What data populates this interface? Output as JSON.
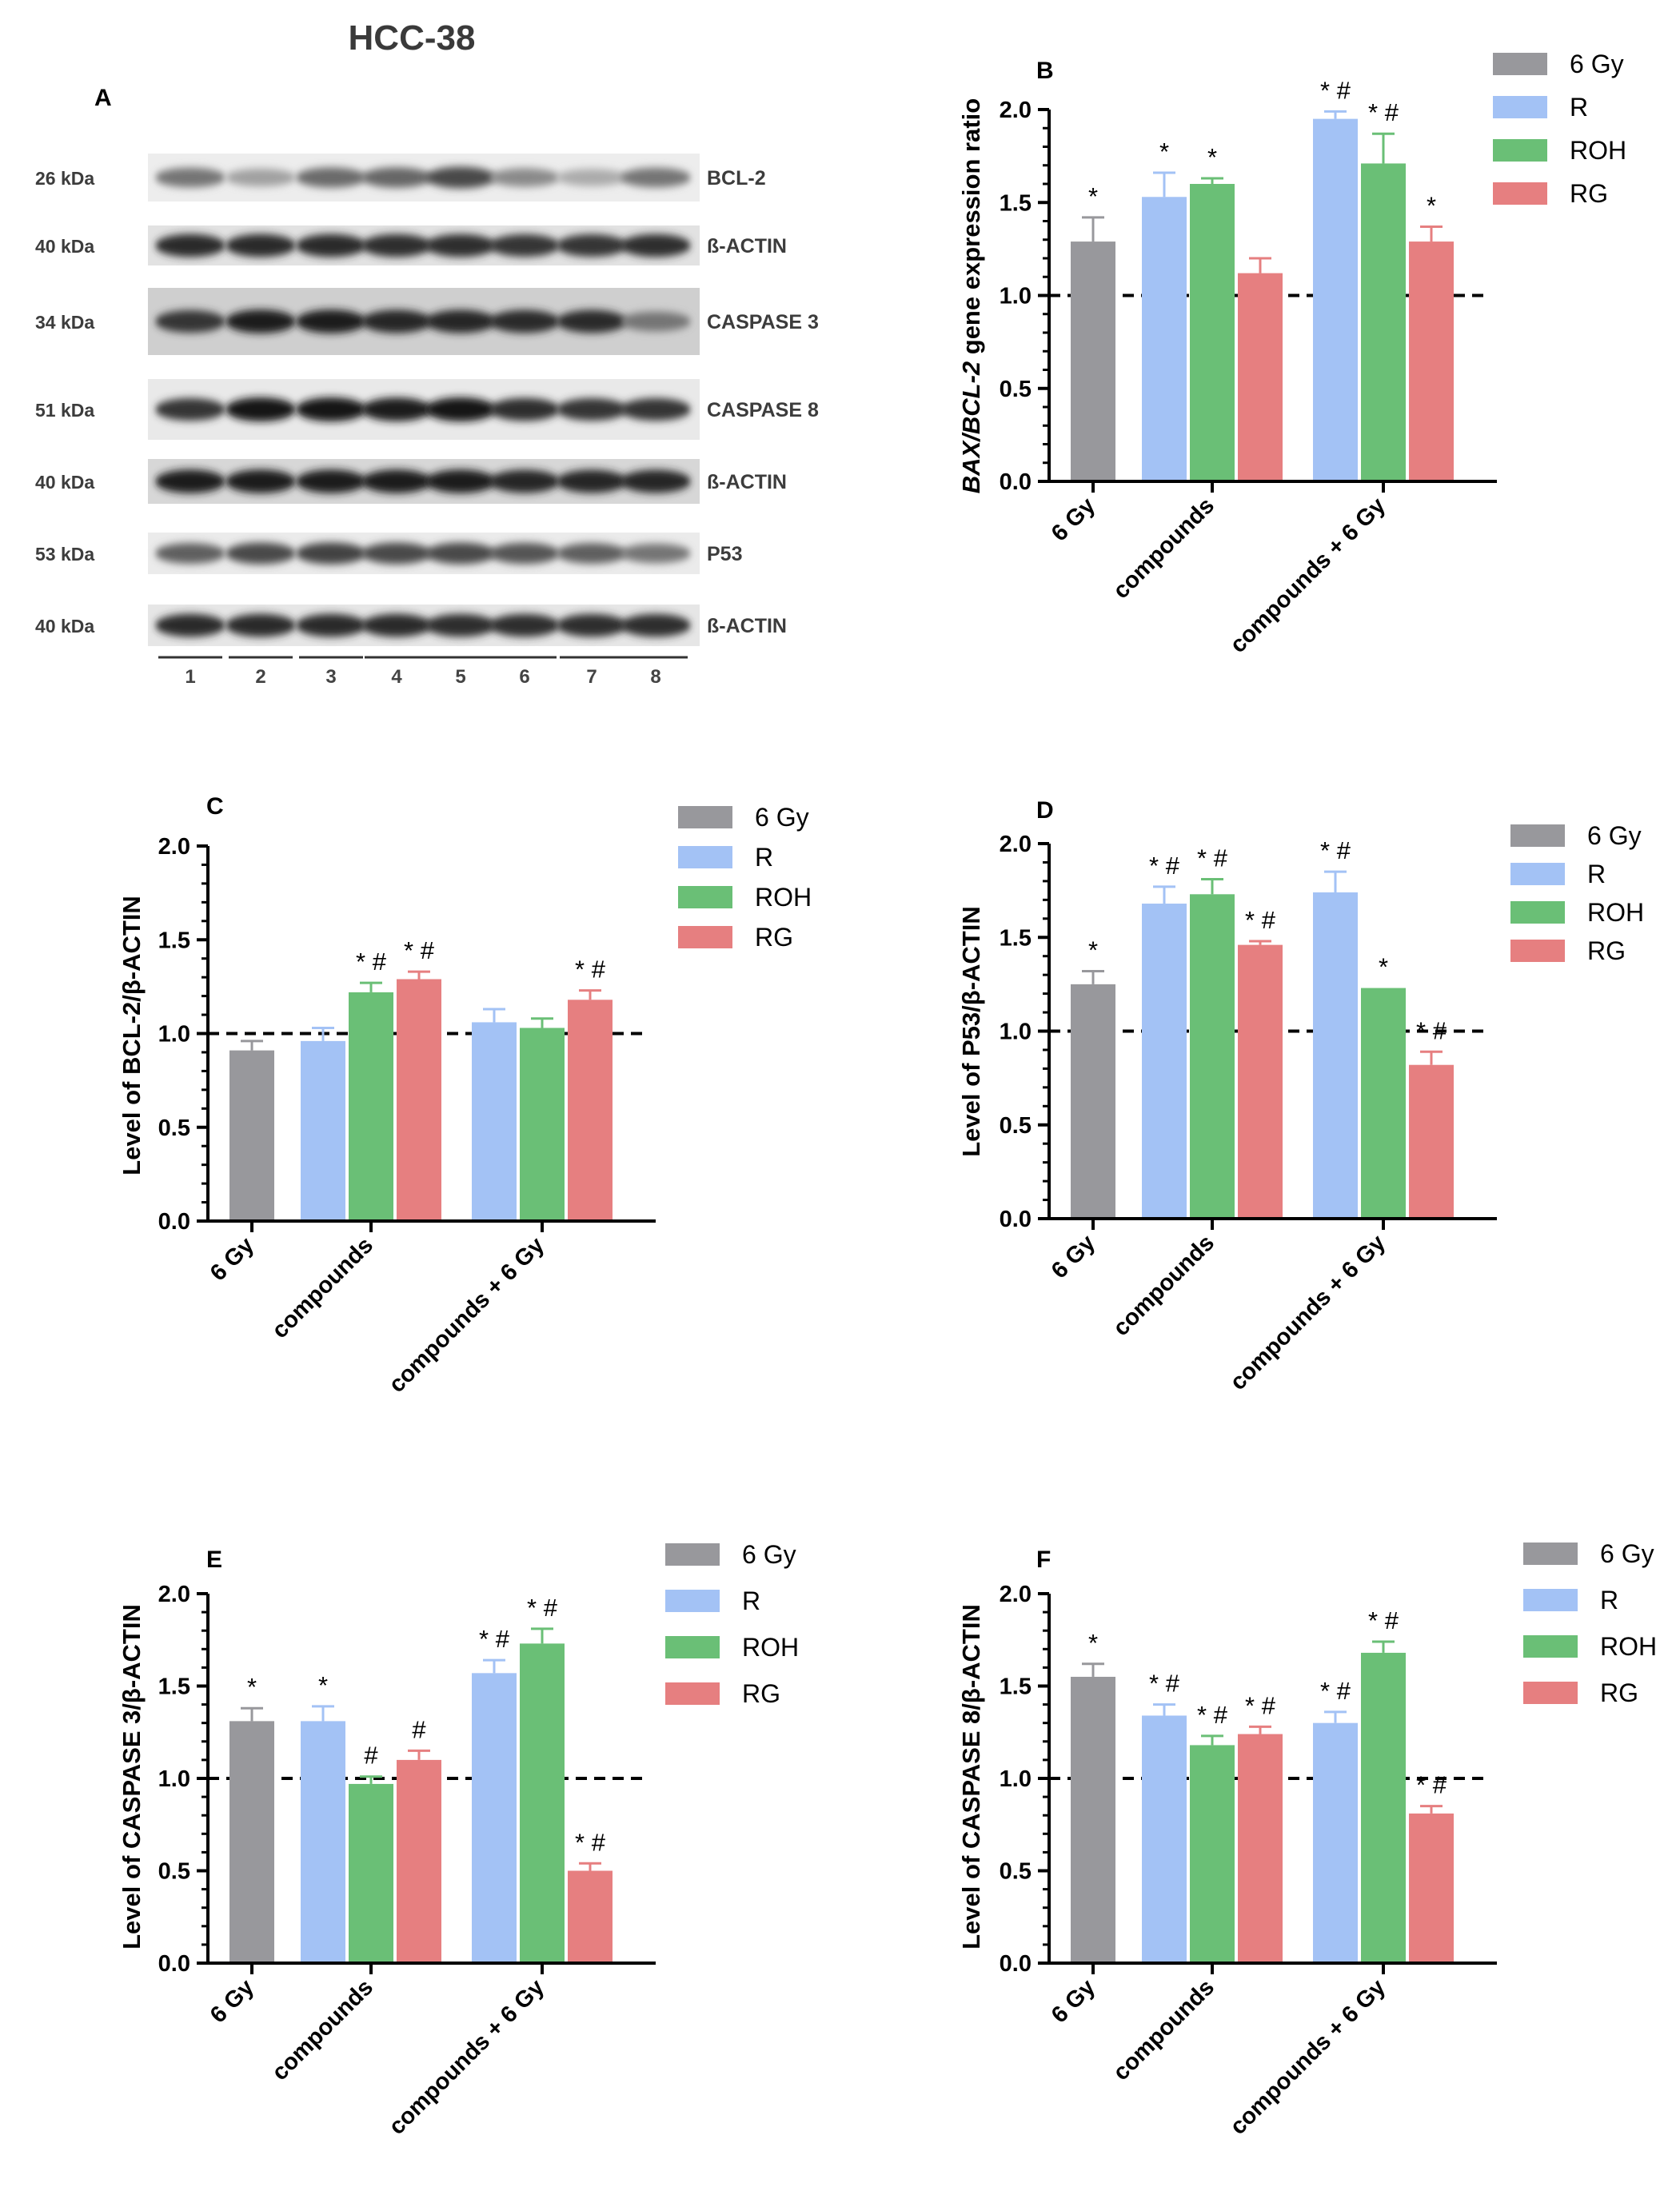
{
  "blot": {
    "title": "HCC-38",
    "panel": "A",
    "bands": [
      {
        "kda": "26 kDa",
        "label": "BCL-2",
        "intensity": [
          0.55,
          0.35,
          0.6,
          0.62,
          0.75,
          0.45,
          0.3,
          0.55
        ]
      },
      {
        "kda": "40 kDa",
        "label": "ß-ACTIN",
        "intensity": [
          0.9,
          0.9,
          0.9,
          0.88,
          0.88,
          0.85,
          0.85,
          0.88
        ]
      },
      {
        "kda": "34 kDa",
        "label": "CASPASE 3",
        "intensity": [
          0.85,
          0.95,
          0.95,
          0.92,
          0.92,
          0.9,
          0.9,
          0.55
        ]
      },
      {
        "kda": "51 kDa",
        "label": "CASPASE 8",
        "intensity": [
          0.85,
          1.0,
          1.0,
          0.95,
          1.0,
          0.88,
          0.85,
          0.85
        ]
      },
      {
        "kda": "40 kDa",
        "label": "ß-ACTIN",
        "intensity": [
          0.95,
          0.95,
          0.95,
          0.95,
          0.95,
          0.92,
          0.92,
          0.92
        ]
      },
      {
        "kda": "53 kDa",
        "label": "P53",
        "intensity": [
          0.65,
          0.75,
          0.78,
          0.75,
          0.75,
          0.7,
          0.65,
          0.55
        ]
      },
      {
        "kda": "40 kDa",
        "label": "ß-ACTIN",
        "intensity": [
          0.9,
          0.9,
          0.9,
          0.9,
          0.88,
          0.88,
          0.88,
          0.88
        ]
      }
    ],
    "lanes": [
      "1",
      "2",
      "3",
      "4",
      "5",
      "6",
      "7",
      "8"
    ]
  },
  "colors": {
    "6 Gy": "#98989c",
    "R": "#a3c2f5",
    "ROH": "#6abf76",
    "RG": "#e67f80"
  },
  "chart_data": [
    {
      "panel": "B",
      "type": "bar",
      "ylabel_italic": "BAX/BCL-2",
      "ylabel_rest": " gene expression ratio",
      "ylim": [
        0,
        2.0
      ],
      "yticks": [
        "0.0",
        "0.5",
        "1.0",
        "1.5",
        "2.0"
      ],
      "reference_line": 1.0,
      "legend": [
        "6 Gy",
        "R",
        "ROH",
        "RG"
      ],
      "groups": [
        {
          "label": "6 Gy",
          "bars": [
            {
              "series": "6 Gy",
              "value": 1.29,
              "err": 0.13,
              "ann": "*"
            }
          ]
        },
        {
          "label": "compounds",
          "bars": [
            {
              "series": "R",
              "value": 1.53,
              "err": 0.13,
              "ann": "*"
            },
            {
              "series": "ROH",
              "value": 1.6,
              "err": 0.03,
              "ann": "*"
            },
            {
              "series": "RG",
              "value": 1.12,
              "err": 0.08,
              "ann": ""
            }
          ]
        },
        {
          "label": "compounds + 6 Gy",
          "bars": [
            {
              "series": "R",
              "value": 1.95,
              "err": 0.04,
              "ann": "* #"
            },
            {
              "series": "ROH",
              "value": 1.71,
              "err": 0.16,
              "ann": "* #"
            },
            {
              "series": "RG",
              "value": 1.29,
              "err": 0.08,
              "ann": "*"
            }
          ]
        }
      ]
    },
    {
      "panel": "C",
      "type": "bar",
      "ylabel": "Level of BCL-2/β-ACTIN",
      "ylim": [
        0,
        2.0
      ],
      "yticks": [
        "0.0",
        "0.5",
        "1.0",
        "1.5",
        "2.0"
      ],
      "reference_line": 1.0,
      "legend": [
        "6 Gy",
        "R",
        "ROH",
        "RG"
      ],
      "groups": [
        {
          "label": "6 Gy",
          "bars": [
            {
              "series": "6 Gy",
              "value": 0.91,
              "err": 0.05,
              "ann": ""
            }
          ]
        },
        {
          "label": "compounds",
          "bars": [
            {
              "series": "R",
              "value": 0.96,
              "err": 0.07,
              "ann": ""
            },
            {
              "series": "ROH",
              "value": 1.22,
              "err": 0.05,
              "ann": "* #"
            },
            {
              "series": "RG",
              "value": 1.29,
              "err": 0.04,
              "ann": "* #"
            }
          ]
        },
        {
          "label": "compounds + 6 Gy",
          "bars": [
            {
              "series": "R",
              "value": 1.06,
              "err": 0.07,
              "ann": ""
            },
            {
              "series": "ROH",
              "value": 1.03,
              "err": 0.05,
              "ann": ""
            },
            {
              "series": "RG",
              "value": 1.18,
              "err": 0.05,
              "ann": "* #"
            }
          ]
        }
      ]
    },
    {
      "panel": "D",
      "type": "bar",
      "ylabel": "Level of P53/β-ACTIN",
      "ylim": [
        0,
        2.0
      ],
      "yticks": [
        "0.0",
        "0.5",
        "1.0",
        "1.5",
        "2.0"
      ],
      "reference_line": 1.0,
      "legend": [
        "6 Gy",
        "R",
        "ROH",
        "RG"
      ],
      "groups": [
        {
          "label": "6 Gy",
          "bars": [
            {
              "series": "6 Gy",
              "value": 1.25,
              "err": 0.07,
              "ann": "*"
            }
          ]
        },
        {
          "label": "compounds",
          "bars": [
            {
              "series": "R",
              "value": 1.68,
              "err": 0.09,
              "ann": "* #"
            },
            {
              "series": "ROH",
              "value": 1.73,
              "err": 0.08,
              "ann": "* #"
            },
            {
              "series": "RG",
              "value": 1.46,
              "err": 0.02,
              "ann": "* #"
            }
          ]
        },
        {
          "label": "compounds + 6 Gy",
          "bars": [
            {
              "series": "R",
              "value": 1.74,
              "err": 0.11,
              "ann": "* #"
            },
            {
              "series": "ROH",
              "value": 1.23,
              "err": 0.0,
              "ann": "*"
            },
            {
              "series": "RG",
              "value": 0.82,
              "err": 0.07,
              "ann": "* #"
            }
          ]
        }
      ]
    },
    {
      "panel": "E",
      "type": "bar",
      "ylabel": "Level of CASPASE 3/β-ACTIN",
      "ylim": [
        0,
        2.0
      ],
      "yticks": [
        "0.0",
        "0.5",
        "1.0",
        "1.5",
        "2.0"
      ],
      "reference_line": 1.0,
      "legend": [
        "6 Gy",
        "R",
        "ROH",
        "RG"
      ],
      "groups": [
        {
          "label": "6 Gy",
          "bars": [
            {
              "series": "6 Gy",
              "value": 1.31,
              "err": 0.07,
              "ann": "*"
            }
          ]
        },
        {
          "label": "compounds",
          "bars": [
            {
              "series": "R",
              "value": 1.31,
              "err": 0.08,
              "ann": "*"
            },
            {
              "series": "ROH",
              "value": 0.97,
              "err": 0.04,
              "ann": "#"
            },
            {
              "series": "RG",
              "value": 1.1,
              "err": 0.05,
              "ann": "#"
            }
          ]
        },
        {
          "label": "compounds + 6 Gy",
          "bars": [
            {
              "series": "R",
              "value": 1.57,
              "err": 0.07,
              "ann": "* #"
            },
            {
              "series": "ROH",
              "value": 1.73,
              "err": 0.08,
              "ann": "* #"
            },
            {
              "series": "RG",
              "value": 0.5,
              "err": 0.04,
              "ann": "* #"
            }
          ]
        }
      ]
    },
    {
      "panel": "F",
      "type": "bar",
      "ylabel": "Level of CASPASE 8/β-ACTIN",
      "ylim": [
        0,
        2.0
      ],
      "yticks": [
        "0.0",
        "0.5",
        "1.0",
        "1.5",
        "2.0"
      ],
      "reference_line": 1.0,
      "legend": [
        "6 Gy",
        "R",
        "ROH",
        "RG"
      ],
      "groups": [
        {
          "label": "6 Gy",
          "bars": [
            {
              "series": "6 Gy",
              "value": 1.55,
              "err": 0.07,
              "ann": "*"
            }
          ]
        },
        {
          "label": "compounds",
          "bars": [
            {
              "series": "R",
              "value": 1.34,
              "err": 0.06,
              "ann": "* #"
            },
            {
              "series": "ROH",
              "value": 1.18,
              "err": 0.05,
              "ann": "* #"
            },
            {
              "series": "RG",
              "value": 1.24,
              "err": 0.04,
              "ann": "* #"
            }
          ]
        },
        {
          "label": "compounds + 6 Gy",
          "bars": [
            {
              "series": "R",
              "value": 1.3,
              "err": 0.06,
              "ann": "* #"
            },
            {
              "series": "ROH",
              "value": 1.68,
              "err": 0.06,
              "ann": "* #"
            },
            {
              "series": "RG",
              "value": 0.81,
              "err": 0.04,
              "ann": "* #"
            }
          ]
        }
      ]
    }
  ]
}
